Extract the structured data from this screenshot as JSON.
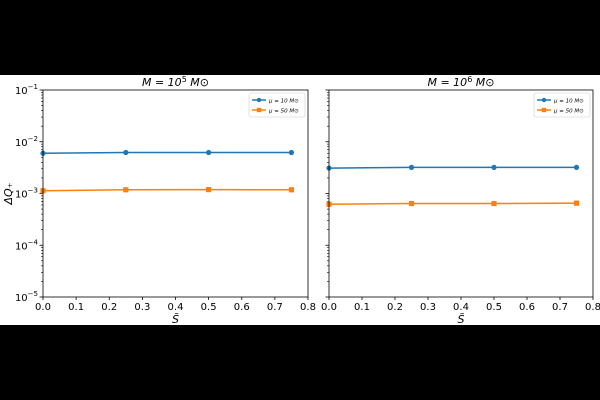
{
  "chart_data": [
    {
      "type": "line",
      "title": "M = 10^5 M_⊙",
      "title_parts": {
        "pre": "M = 10",
        "exp": "5",
        "post": " M⊙"
      },
      "xlabel": "S̃",
      "ylabel": "ΔQ₊",
      "yscale": "log",
      "xlim": [
        0,
        0.8
      ],
      "ylim": [
        1e-05,
        0.1
      ],
      "xticks": [
        "0.0",
        "0.1",
        "0.2",
        "0.3",
        "0.4",
        "0.5",
        "0.6",
        "0.7",
        "0.8"
      ],
      "yticks": [
        {
          "base": "10",
          "exp": "−5"
        },
        {
          "base": "10",
          "exp": "−4"
        },
        {
          "base": "10",
          "exp": "−3"
        },
        {
          "base": "10",
          "exp": "−2"
        },
        {
          "base": "10",
          "exp": "−1"
        }
      ],
      "legend_position": "top-right",
      "series": [
        {
          "name": "μ = 10 M⊙",
          "color": "#1f77b4",
          "marker": "circle",
          "x": [
            0.0,
            0.25,
            0.5,
            0.75
          ],
          "y": [
            0.006,
            0.0062,
            0.0062,
            0.0062
          ]
        },
        {
          "name": "μ = 50 M⊙",
          "color": "#ff7f0e",
          "marker": "square",
          "x": [
            0.0,
            0.25,
            0.5,
            0.75
          ],
          "y": [
            0.00113,
            0.00118,
            0.00119,
            0.00118
          ]
        }
      ]
    },
    {
      "type": "line",
      "title": "M = 10^6 M_⊙",
      "title_parts": {
        "pre": "M = 10",
        "exp": "6",
        "post": " M⊙"
      },
      "xlabel": "S̃",
      "ylabel": "",
      "yscale": "log",
      "xlim": [
        0,
        0.8
      ],
      "ylim": [
        1e-05,
        0.1
      ],
      "xticks": [
        "0.0",
        "0.1",
        "0.2",
        "0.3",
        "0.4",
        "0.5",
        "0.6",
        "0.7",
        "0.8"
      ],
      "yticks": [],
      "legend_position": "top-right",
      "series": [
        {
          "name": "μ = 10 M⊙",
          "color": "#1f77b4",
          "marker": "circle",
          "x": [
            0.0,
            0.25,
            0.5,
            0.75
          ],
          "y": [
            0.0031,
            0.0032,
            0.0032,
            0.0032
          ]
        },
        {
          "name": "μ = 50 M⊙",
          "color": "#ff7f0e",
          "marker": "square",
          "x": [
            0.0,
            0.25,
            0.5,
            0.75
          ],
          "y": [
            0.00062,
            0.00064,
            0.00064,
            0.00065
          ]
        }
      ]
    }
  ]
}
